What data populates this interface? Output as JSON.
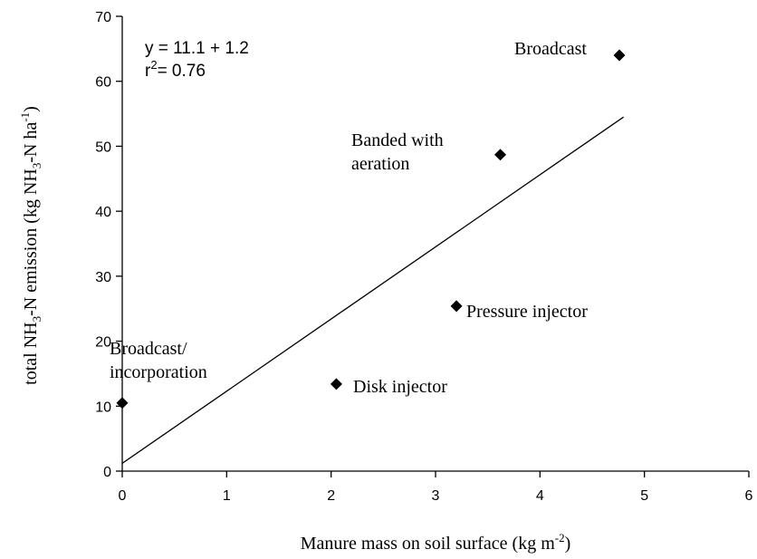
{
  "chart_data": {
    "type": "scatter",
    "x_label": [
      {
        "text": "Manure mass on soil surface (kg m"
      },
      {
        "text": "-2",
        "shift": "sup"
      },
      {
        "text": ")"
      }
    ],
    "y_label": [
      {
        "text": "total NH"
      },
      {
        "text": "3",
        "shift": "sub"
      },
      {
        "text": "-N emission (kg NH"
      },
      {
        "text": "3",
        "shift": "sub"
      },
      {
        "text": "-N ha"
      },
      {
        "text": "-1",
        "shift": "sup"
      },
      {
        "text": ")"
      }
    ],
    "annotations": [
      [
        {
          "text": "y = 11.1 + 1.2"
        }
      ],
      [
        {
          "text": "r"
        },
        {
          "text": "2",
          "shift": "sup"
        },
        {
          "text": "= 0.76"
        }
      ]
    ],
    "x": [
      0,
      2.05,
      3.2,
      3.62,
      4.76
    ],
    "values": [
      10.5,
      13.4,
      25.4,
      48.7,
      64
    ],
    "point_labels": [
      [
        "Broadcast/",
        "incorporation"
      ],
      [
        "Disk injector"
      ],
      [
        "Pressure injector"
      ],
      [
        "Banded with",
        "aeration"
      ],
      [
        "Broadcast"
      ]
    ],
    "color": "#000000",
    "trendline": {
      "x": [
        0,
        4.8
      ],
      "values": [
        1.2,
        54.5
      ]
    },
    "xlim": [
      0,
      6
    ],
    "xticks": [
      0,
      1,
      2,
      3,
      4,
      5,
      6
    ],
    "ylim": [
      0,
      70
    ],
    "yticks": [
      0,
      10,
      20,
      30,
      40,
      50,
      60,
      70
    ]
  }
}
